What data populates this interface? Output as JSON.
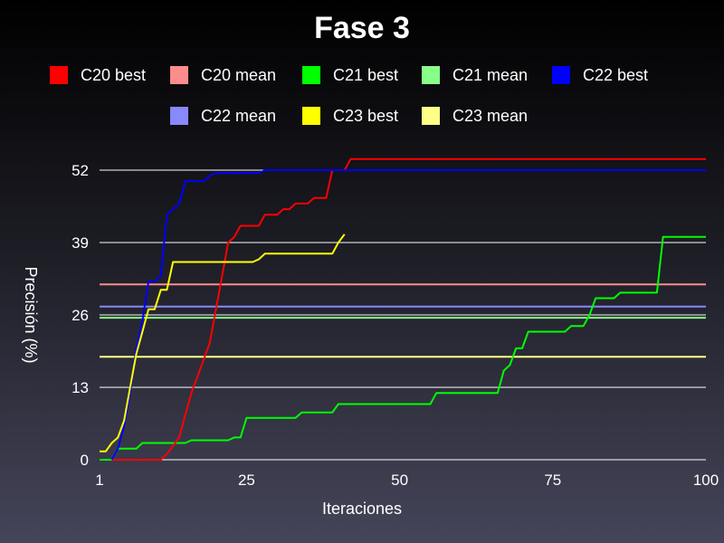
{
  "chart_data": {
    "type": "line",
    "title": "Fase 3",
    "xlabel": "Iteraciones",
    "ylabel": "Precisión (%)",
    "xlim": [
      1,
      100
    ],
    "ylim": [
      0,
      52
    ],
    "x_ticks": [
      1,
      25,
      50,
      75,
      100
    ],
    "y_ticks": [
      0,
      13,
      26,
      39,
      52
    ],
    "grid": "horizontal",
    "legend_position": "top",
    "series": [
      {
        "name": "C20 best",
        "color": "#ff0000",
        "points": [
          [
            3,
            0
          ],
          [
            11,
            0
          ],
          [
            12,
            1
          ],
          [
            14,
            4
          ],
          [
            15,
            8
          ],
          [
            16,
            12
          ],
          [
            17,
            15
          ],
          [
            18,
            18
          ],
          [
            19,
            21
          ],
          [
            20,
            27
          ],
          [
            21,
            33
          ],
          [
            22,
            39
          ],
          [
            23,
            40
          ],
          [
            24,
            42
          ],
          [
            27,
            42
          ],
          [
            28,
            44
          ],
          [
            30,
            44
          ],
          [
            31,
            45
          ],
          [
            32,
            45
          ],
          [
            33,
            46
          ],
          [
            35,
            46
          ],
          [
            36,
            47
          ],
          [
            38,
            47
          ],
          [
            39,
            52
          ],
          [
            41,
            52
          ],
          [
            42,
            54
          ],
          [
            100,
            54
          ]
        ]
      },
      {
        "name": "C20 mean",
        "color": "#ff8c8c",
        "points": [
          [
            1,
            31.5
          ],
          [
            100,
            31.5
          ]
        ]
      },
      {
        "name": "C21 best",
        "color": "#00ff00",
        "points": [
          [
            1,
            0
          ],
          [
            3,
            0
          ],
          [
            4,
            2
          ],
          [
            7,
            2
          ],
          [
            8,
            3
          ],
          [
            15,
            3
          ],
          [
            16,
            3.5
          ],
          [
            22,
            3.5
          ],
          [
            23,
            4
          ],
          [
            24,
            4
          ],
          [
            25,
            7.5
          ],
          [
            33,
            7.5
          ],
          [
            34,
            8.5
          ],
          [
            39,
            8.5
          ],
          [
            40,
            10
          ],
          [
            55,
            10
          ],
          [
            56,
            12
          ],
          [
            66,
            12
          ],
          [
            67,
            16
          ],
          [
            68,
            17
          ],
          [
            69,
            20
          ],
          [
            70,
            20
          ],
          [
            71,
            23
          ],
          [
            77,
            23
          ],
          [
            78,
            24
          ],
          [
            80,
            24
          ],
          [
            81,
            26
          ],
          [
            82,
            29
          ],
          [
            85,
            29
          ],
          [
            86,
            30
          ],
          [
            92,
            30
          ],
          [
            93,
            40
          ],
          [
            100,
            40
          ]
        ]
      },
      {
        "name": "C21 mean",
        "color": "#88ff88",
        "points": [
          [
            1,
            25.5
          ],
          [
            100,
            25.5
          ]
        ]
      },
      {
        "name": "C22 best",
        "color": "#0000ff",
        "points": [
          [
            3,
            0
          ],
          [
            4,
            2
          ],
          [
            5,
            6
          ],
          [
            6,
            12
          ],
          [
            7,
            20
          ],
          [
            8,
            25
          ],
          [
            9,
            32
          ],
          [
            10,
            32
          ],
          [
            11,
            33
          ],
          [
            12,
            44
          ],
          [
            13,
            45
          ],
          [
            14,
            46
          ],
          [
            15,
            50
          ],
          [
            18,
            50
          ],
          [
            19,
            51
          ],
          [
            20,
            51.5
          ],
          [
            27,
            51.5
          ],
          [
            28,
            52
          ],
          [
            100,
            52
          ]
        ]
      },
      {
        "name": "C22 mean",
        "color": "#8888ff",
        "points": [
          [
            1,
            27.5
          ],
          [
            100,
            27.5
          ]
        ]
      },
      {
        "name": "C23 best",
        "color": "#ffff00",
        "points": [
          [
            1,
            1.5
          ],
          [
            2,
            1.5
          ],
          [
            3,
            3
          ],
          [
            4,
            4
          ],
          [
            5,
            7
          ],
          [
            6,
            13
          ],
          [
            7,
            19
          ],
          [
            8,
            23
          ],
          [
            9,
            27
          ],
          [
            10,
            27
          ],
          [
            11,
            30.5
          ],
          [
            12,
            30.5
          ],
          [
            13,
            35.5
          ],
          [
            26,
            35.5
          ],
          [
            27,
            36
          ],
          [
            28,
            37
          ],
          [
            39,
            37
          ],
          [
            40,
            39
          ],
          [
            41,
            40.5
          ]
        ]
      },
      {
        "name": "C23 mean",
        "color": "#ffff88",
        "points": [
          [
            1,
            18.5
          ],
          [
            100,
            18.5
          ]
        ]
      }
    ]
  }
}
